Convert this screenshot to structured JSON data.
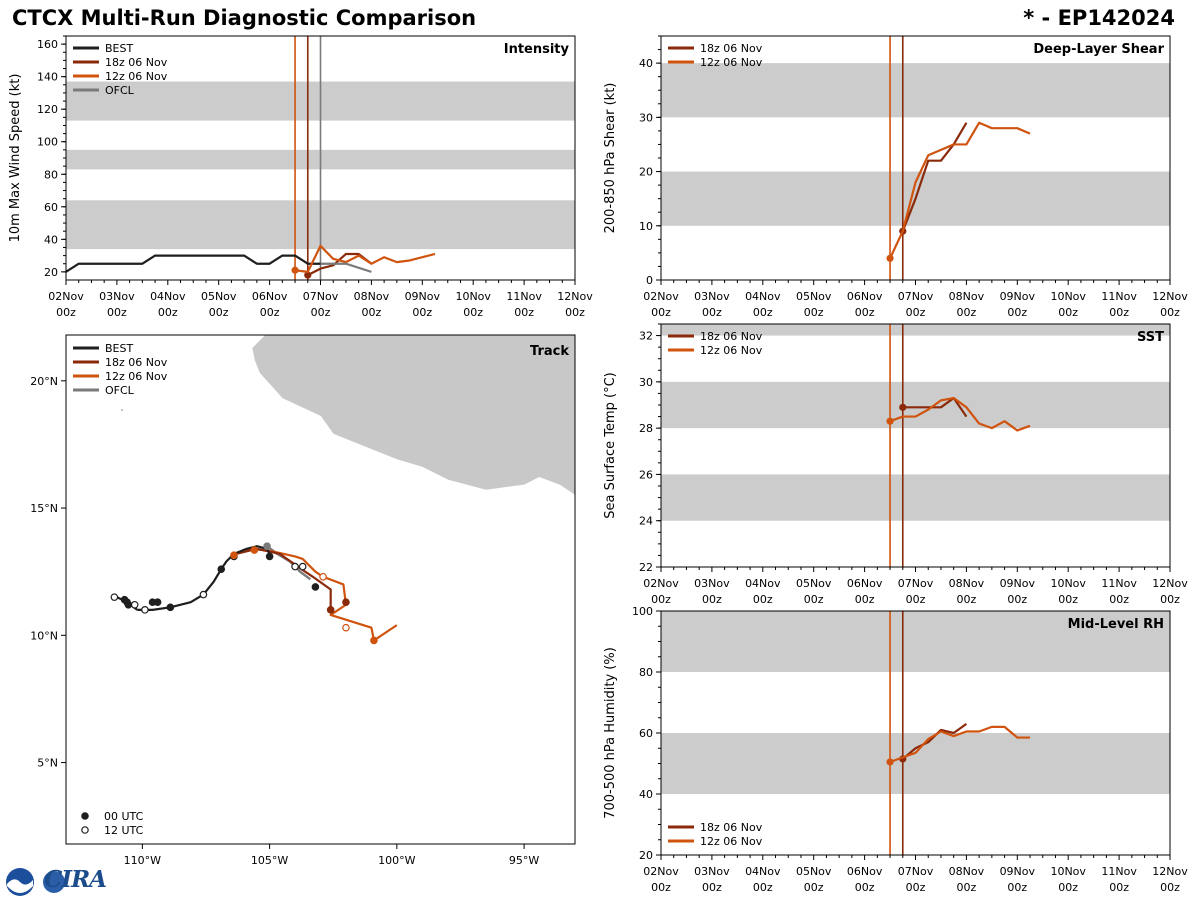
{
  "header": {
    "title": "CTCX Multi-Run Diagnostic Comparison",
    "storm": "* - EP142024"
  },
  "logo": {
    "text": "CIRA",
    "badge": "NOAA"
  },
  "colors": {
    "best": "#1f1f1f",
    "r18": "#8b2a0a",
    "r12": "#d0530e",
    "ofcl": "#7a7a7a",
    "band": "#cccccc",
    "land": "#c8c8c8"
  },
  "time_axis": {
    "ticks": [
      "02Nov",
      "03Nov",
      "04Nov",
      "05Nov",
      "06Nov",
      "07Nov",
      "08Nov",
      "09Nov",
      "10Nov",
      "11Nov",
      "12Nov"
    ],
    "sub": "00z",
    "init_times": [
      4.5,
      4.75
    ]
  },
  "chart_data": [
    {
      "id": "intensity",
      "type": "line",
      "title": "Intensity",
      "ylabel": "10m Max Wind Speed (kt)",
      "ylim": [
        15,
        165
      ],
      "yticks": [
        20,
        40,
        60,
        80,
        100,
        120,
        140,
        160
      ],
      "bands": [
        [
          34,
          64
        ],
        [
          83,
          95
        ],
        [
          113,
          137
        ]
      ],
      "legend": [
        "BEST",
        "18z 06 Nov",
        "12z 06 Nov",
        "OFCL"
      ],
      "vlines": [
        {
          "x": 4.5,
          "key": "r12"
        },
        {
          "x": 4.75,
          "key": "r18"
        },
        {
          "x": 5.0,
          "key": "ofcl"
        }
      ],
      "series": [
        {
          "name": "BEST",
          "key": "best",
          "x": [
            0,
            0.25,
            0.5,
            0.75,
            1,
            1.25,
            1.5,
            1.75,
            2,
            2.25,
            2.5,
            2.75,
            3,
            3.25,
            3.5,
            3.75,
            4,
            4.25,
            4.5,
            4.75,
            5
          ],
          "y": [
            20,
            25,
            25,
            25,
            25,
            25,
            25,
            30,
            30,
            30,
            30,
            30,
            30,
            30,
            30,
            25,
            25,
            30,
            30,
            25,
            25
          ]
        },
        {
          "name": "18z 06 Nov",
          "key": "r18",
          "x": [
            4.75,
            5,
            5.25,
            5.5,
            5.75,
            6
          ],
          "y": [
            18,
            22,
            24,
            31,
            31,
            25
          ]
        },
        {
          "name": "12z 06 Nov",
          "key": "r12",
          "x": [
            4.5,
            4.75,
            5,
            5.25,
            5.5,
            5.75,
            6,
            6.25,
            6.5,
            6.75,
            7,
            7.25
          ],
          "y": [
            21,
            20,
            36,
            28,
            26,
            30,
            25,
            29,
            26,
            27,
            29,
            31
          ]
        },
        {
          "name": "OFCL",
          "key": "ofcl",
          "x": [
            5,
            5.5,
            6
          ],
          "y": [
            25,
            25,
            20
          ]
        }
      ]
    },
    {
      "id": "shear",
      "type": "line",
      "title": "Deep-Layer Shear",
      "ylabel": "200-850 hPa Shear (kt)",
      "ylim": [
        0,
        45
      ],
      "yticks": [
        0,
        10,
        20,
        30,
        40
      ],
      "bands": [
        [
          10,
          20
        ],
        [
          30,
          40
        ]
      ],
      "legend": [
        "18z 06 Nov",
        "12z 06 Nov"
      ],
      "vlines": [
        {
          "x": 4.5,
          "key": "r12"
        },
        {
          "x": 4.75,
          "key": "r18"
        }
      ],
      "series": [
        {
          "name": "18z 06 Nov",
          "key": "r18",
          "x": [
            4.75,
            5,
            5.25,
            5.5,
            5.75,
            6
          ],
          "y": [
            9,
            15,
            22,
            22,
            25,
            29
          ]
        },
        {
          "name": "12z 06 Nov",
          "key": "r12",
          "x": [
            4.5,
            4.75,
            5,
            5.25,
            5.5,
            5.75,
            6,
            6.25,
            6.5,
            6.75,
            7,
            7.25
          ],
          "y": [
            4,
            9,
            18,
            23,
            24,
            25,
            25,
            29,
            28,
            28,
            28,
            27
          ]
        }
      ]
    },
    {
      "id": "sst",
      "type": "line",
      "title": "SST",
      "ylabel": "Sea Surface Temp (°C)",
      "ylim": [
        22,
        32.5
      ],
      "yticks": [
        22,
        24,
        26,
        28,
        30,
        32
      ],
      "bands": [
        [
          24,
          26
        ],
        [
          28,
          30
        ],
        [
          32,
          32.5
        ]
      ],
      "legend": [
        "18z 06 Nov",
        "12z 06 Nov"
      ],
      "vlines": [
        {
          "x": 4.5,
          "key": "r12"
        },
        {
          "x": 4.75,
          "key": "r18"
        }
      ],
      "series": [
        {
          "name": "18z 06 Nov",
          "key": "r18",
          "x": [
            4.75,
            5,
            5.25,
            5.5,
            5.75,
            6
          ],
          "y": [
            28.9,
            28.9,
            28.9,
            28.9,
            29.3,
            28.5
          ]
        },
        {
          "name": "12z 06 Nov",
          "key": "r12",
          "x": [
            4.5,
            4.75,
            5,
            5.25,
            5.5,
            5.75,
            6,
            6.25,
            6.5,
            6.75,
            7,
            7.25
          ],
          "y": [
            28.3,
            28.5,
            28.5,
            28.8,
            29.2,
            29.3,
            28.9,
            28.2,
            28.0,
            28.3,
            27.9,
            28.1
          ]
        }
      ]
    },
    {
      "id": "rh",
      "type": "line",
      "title": "Mid-Level RH",
      "ylabel": "700-500 hPa Humidity (%)",
      "ylim": [
        20,
        100
      ],
      "yticks": [
        20,
        40,
        60,
        80,
        100
      ],
      "bands": [
        [
          40,
          60
        ],
        [
          80,
          100
        ]
      ],
      "legend": [
        "18z 06 Nov",
        "12z 06 Nov"
      ],
      "vlines": [
        {
          "x": 4.5,
          "key": "r12"
        },
        {
          "x": 4.75,
          "key": "r18"
        }
      ],
      "series": [
        {
          "name": "18z 06 Nov",
          "key": "r18",
          "x": [
            4.75,
            5,
            5.25,
            5.5,
            5.75,
            6
          ],
          "y": [
            51.5,
            55,
            57,
            61,
            60,
            63
          ]
        },
        {
          "name": "12z 06 Nov",
          "key": "r12",
          "x": [
            4.5,
            4.75,
            5,
            5.25,
            5.5,
            5.75,
            6,
            6.25,
            6.5,
            6.75,
            7,
            7.25
          ],
          "y": [
            50.5,
            52,
            53.5,
            58,
            60.5,
            59,
            60.5,
            60.5,
            62,
            62,
            58.5,
            58.5
          ]
        }
      ]
    },
    {
      "id": "track",
      "type": "scatter",
      "title": "Track",
      "xlim": [
        -113,
        -93
      ],
      "ylim": [
        1.8,
        21.8
      ],
      "xticks": [
        -110,
        -105,
        -100,
        -95
      ],
      "xtick_labels": [
        "110°W",
        "105°W",
        "100°W",
        "95°W"
      ],
      "yticks": [
        5,
        10,
        15,
        20
      ],
      "ytick_labels": [
        "5°N",
        "10°N",
        "15°N",
        "20°N"
      ],
      "legend": [
        "BEST",
        "18z 06 Nov",
        "12z 06 Nov",
        "OFCL"
      ],
      "marker_legend": [
        "00 UTC",
        "12 UTC"
      ],
      "best_track": {
        "lon": [
          -110.2,
          -109.6,
          -108.9,
          -108.1,
          -107.6,
          -107.2,
          -106.9,
          -106.7,
          -106.4,
          -105.9,
          -105.5,
          -105.1,
          -105.0
        ],
        "lat": [
          11.0,
          11.0,
          11.1,
          11.3,
          11.6,
          12.1,
          12.6,
          12.9,
          13.2,
          13.4,
          13.5,
          13.4,
          13.2
        ]
      },
      "best_hook": {
        "lon": [
          -111.0,
          -110.8,
          -110.5,
          -110.4,
          -110.8,
          -110.6,
          -110.2
        ],
        "lat": [
          11.5,
          11.4,
          11.3,
          11.2,
          11.4,
          11.3,
          11.0
        ]
      },
      "best_points": [
        {
          "lon": -110.7,
          "lat": 11.4,
          "fill": true
        },
        {
          "lon": -110.6,
          "lat": 11.3,
          "fill": true
        },
        {
          "lon": -110.55,
          "lat": 11.2,
          "fill": true
        },
        {
          "lon": -109.6,
          "lat": 11.3,
          "fill": true
        },
        {
          "lon": -109.4,
          "lat": 11.3,
          "fill": true
        },
        {
          "lon": -108.9,
          "lat": 11.1,
          "fill": true
        },
        {
          "lon": -106.9,
          "lat": 12.6,
          "fill": true
        },
        {
          "lon": -105.0,
          "lat": 13.1,
          "fill": true
        },
        {
          "lon": -103.2,
          "lat": 11.9,
          "fill": true
        },
        {
          "lon": -111.1,
          "lat": 11.5,
          "fill": false
        },
        {
          "lon": -110.3,
          "lat": 11.2,
          "fill": false
        },
        {
          "lon": -109.9,
          "lat": 11.0,
          "fill": false
        },
        {
          "lon": -107.6,
          "lat": 11.6,
          "fill": false
        },
        {
          "lon": -106.4,
          "lat": 13.1,
          "fill": false
        },
        {
          "lon": -104.0,
          "lat": 12.7,
          "fill": false
        },
        {
          "lon": -103.7,
          "lat": 12.7,
          "fill": false
        }
      ],
      "r18": {
        "lon": [
          -106.3,
          -105.5,
          -104.6,
          -103.6,
          -103.3,
          -102.6,
          -102.6
        ],
        "lat": [
          13.2,
          13.4,
          13.2,
          12.5,
          12.3,
          11.8,
          11.0
        ]
      },
      "r18_points": [
        {
          "lon": -102.6,
          "lat": 11.0,
          "fill": true
        },
        {
          "lon": -102.0,
          "lat": 11.3,
          "fill": true
        }
      ],
      "r12": {
        "lon": [
          -106.4,
          -105.7,
          -104.9,
          -104.0,
          -103.7,
          -103.2,
          -102.9,
          -102.1,
          -102.0,
          -102.6,
          -101.0,
          -100.9,
          -100.0
        ],
        "lat": [
          13.2,
          13.4,
          13.3,
          13.1,
          13.0,
          12.5,
          12.3,
          12.0,
          11.2,
          10.8,
          10.3,
          9.8,
          10.4
        ]
      },
      "r12_points": [
        {
          "lon": -106.4,
          "lat": 13.15,
          "fill": true
        },
        {
          "lon": -105.6,
          "lat": 13.35,
          "fill": true
        },
        {
          "lon": -102.0,
          "lat": 10.3,
          "fill": false
        },
        {
          "lon": -100.9,
          "lat": 9.8,
          "fill": true
        },
        {
          "lon": -102.9,
          "lat": 12.3,
          "fill": false
        }
      ],
      "ofcl": {
        "lon": [
          -105.1,
          -104.7,
          -104.2,
          -103.8,
          -103.4
        ],
        "lat": [
          13.5,
          13.2,
          12.9,
          12.5,
          12.2
        ]
      },
      "ofcl_points": [
        {
          "lon": -105.1,
          "lat": 13.5,
          "fill": true
        }
      ],
      "land": {
        "lon": [
          -105.4,
          -104.5,
          -103.0,
          -102.5,
          -101.5,
          -100.0,
          -99.0,
          -98.0,
          -96.5,
          -95.0,
          -94.4,
          -93.6,
          -93.0,
          -93.0,
          -95.0,
          -97.0,
          -99.5,
          -101.0,
          -103.5,
          -105.2,
          -105.7,
          -105.6,
          -105.4
        ],
        "lat": [
          20.3,
          19.3,
          18.6,
          17.9,
          17.5,
          16.9,
          16.6,
          16.1,
          15.7,
          15.9,
          16.2,
          15.9,
          15.5,
          21.8,
          21.8,
          21.8,
          21.8,
          21.8,
          21.8,
          21.8,
          21.3,
          20.8,
          20.3
        ]
      }
    }
  ]
}
